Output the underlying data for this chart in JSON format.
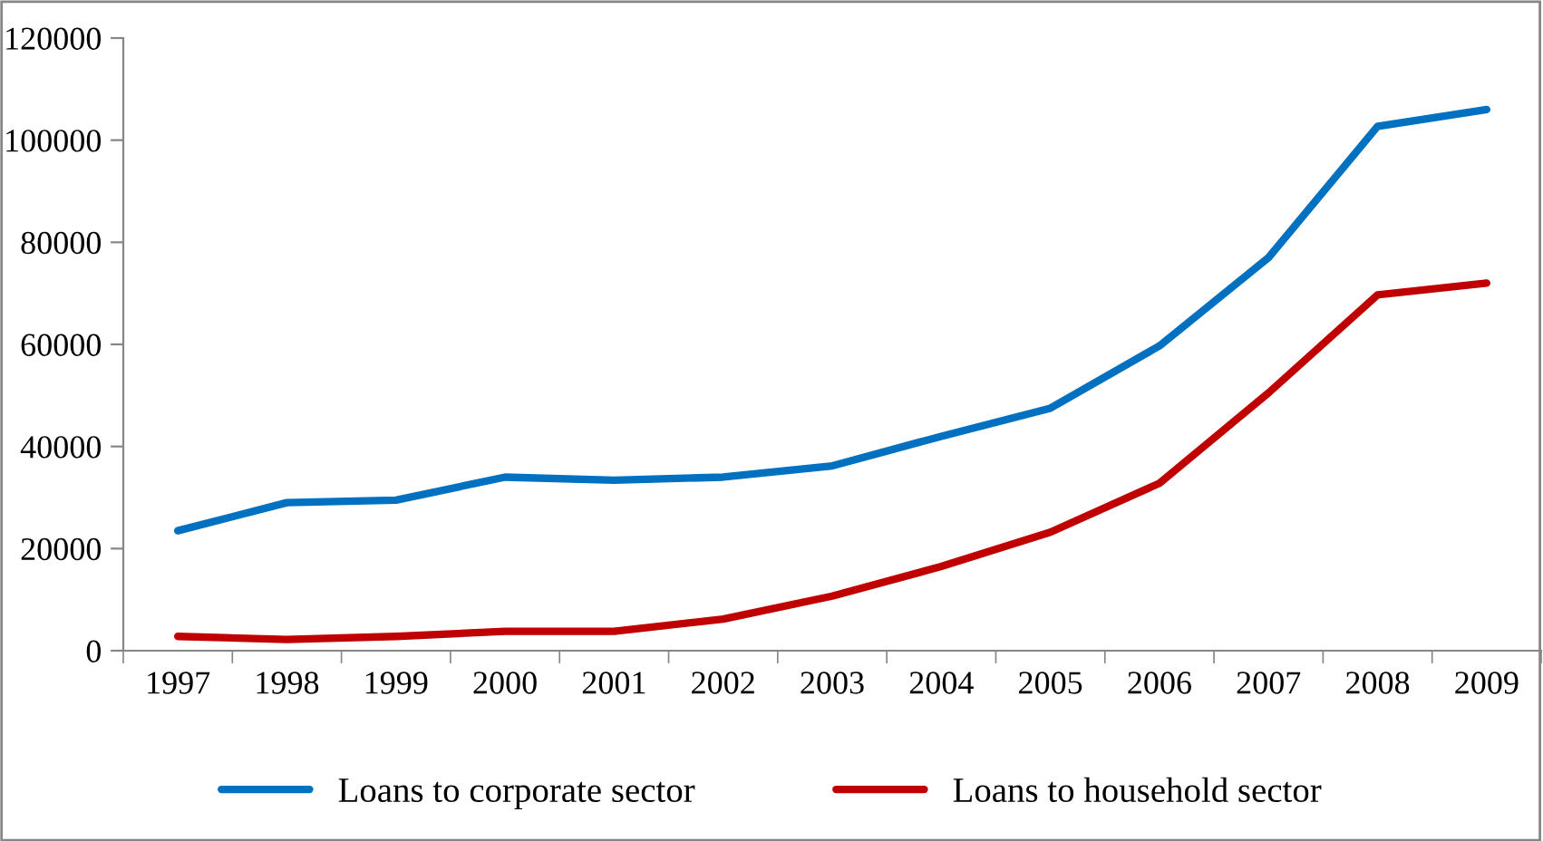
{
  "chart_data": {
    "type": "line",
    "categories": [
      "1997",
      "1998",
      "1999",
      "2000",
      "2001",
      "2002",
      "2003",
      "2004",
      "2005",
      "2006",
      "2007",
      "2008",
      "2009"
    ],
    "series": [
      {
        "name": "Loans to corporate sector",
        "color": "#0070c0",
        "values": [
          23500,
          29000,
          29500,
          34000,
          33400,
          34000,
          36200,
          42000,
          47500,
          59700,
          77000,
          102700,
          106000
        ]
      },
      {
        "name": "Loans to household sector",
        "color": "#c00000",
        "values": [
          2800,
          2200,
          2800,
          3800,
          3800,
          6200,
          10700,
          16500,
          23200,
          32800,
          50500,
          69700,
          72000
        ]
      }
    ],
    "ylim": [
      0,
      120000
    ],
    "yticks": [
      0,
      20000,
      40000,
      60000,
      80000,
      100000,
      120000
    ],
    "legend": "bottom",
    "marker": "none",
    "line_style": "solid"
  }
}
